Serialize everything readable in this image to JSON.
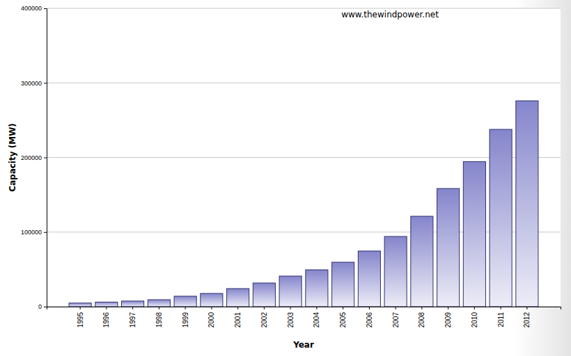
{
  "chart_data": {
    "type": "bar",
    "x_label": "Year",
    "y_label": "Capacity (MW)",
    "annotations": [
      "www.thewindpower.net"
    ],
    "categories": [
      "1995",
      "1996",
      "1997",
      "1998",
      "1999",
      "2000",
      "2001",
      "2002",
      "2003",
      "2004",
      "2005",
      "2006",
      "2007",
      "2008",
      "2009",
      "2010",
      "2011",
      "2012"
    ],
    "values": [
      4800,
      6100,
      7500,
      9300,
      14000,
      17700,
      24200,
      31700,
      41000,
      49400,
      59600,
      74600,
      94100,
      121200,
      158400,
      194500,
      237700,
      276000
    ],
    "color": "#8585cc",
    "ylim": [
      0,
      400000
    ],
    "yticks": [
      0,
      100000,
      200000,
      300000,
      400000
    ],
    "grid": true
  }
}
